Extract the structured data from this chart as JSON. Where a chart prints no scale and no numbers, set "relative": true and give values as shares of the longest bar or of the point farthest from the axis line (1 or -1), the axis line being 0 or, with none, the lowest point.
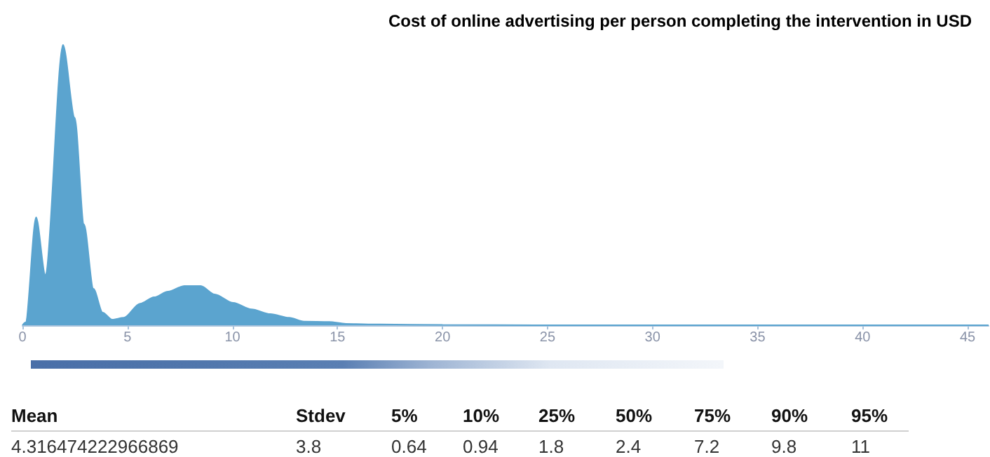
{
  "chart_data": {
    "type": "area",
    "title": "Cost of online advertising per person completing the intervention in USD",
    "relative": true,
    "x": [
      0,
      0.15,
      0.65,
      1.09,
      1.93,
      2.49,
      2.93,
      3.38,
      3.82,
      4.27,
      4.83,
      5.6,
      6.27,
      6.93,
      7.71,
      8.49,
      9.15,
      10.04,
      10.9,
      11.8,
      12.7,
      13.4,
      14.6,
      15.4,
      17,
      20,
      25,
      46
    ],
    "series": [
      {
        "color": "#5ba4cf",
        "values": [
          0,
          0.01,
          0.385,
          0.18,
          1.0,
          0.74,
          0.36,
          0.13,
          0.045,
          0.02,
          0.027,
          0.077,
          0.1,
          0.12,
          0.14,
          0.14,
          0.11,
          0.08,
          0.057,
          0.04,
          0.027,
          0.013,
          0.012,
          0.005,
          0.003,
          0.001,
          0,
          0
        ]
      }
    ],
    "xlim": [
      0,
      46
    ],
    "xticks": [
      0,
      5,
      10,
      15,
      20,
      25,
      30,
      35,
      40,
      45
    ],
    "annotations": [
      "Mean",
      "Stdev",
      "5%",
      "10%",
      "25%",
      "50%",
      "75%",
      "90%",
      "95%",
      "4.316474222966869",
      "3.8",
      "0.64",
      "0.94",
      "1.8",
      "2.4",
      "7.2",
      "9.8",
      "11"
    ]
  }
}
